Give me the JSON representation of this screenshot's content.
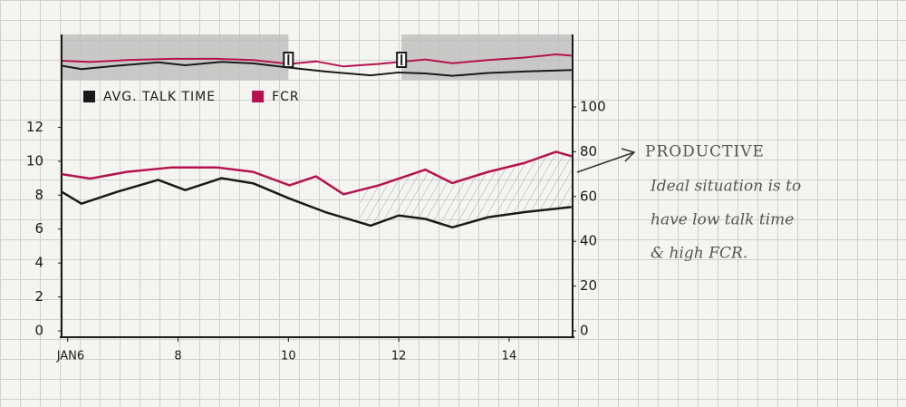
{
  "chart_data": {
    "type": "line",
    "series": [
      {
        "name": "AVG. TALK TIME",
        "color": "#1a1a1a",
        "x": [
          5.89,
          6.25,
          6.9,
          7.64,
          8.13,
          8.79,
          9.36,
          10.02,
          10.67,
          11.49,
          12.0,
          12.48,
          12.97,
          13.62,
          14.28,
          15.13
        ],
        "values": [
          8.2,
          7.5,
          8.2,
          8.9,
          8.3,
          9.0,
          8.7,
          7.8,
          7.0,
          6.2,
          6.8,
          6.6,
          6.1,
          6.7,
          7.0,
          7.3
        ]
      },
      {
        "name": "FCR",
        "color": "#b5124f",
        "axis": "y2",
        "x": [
          5.89,
          6.41,
          7.07,
          7.89,
          8.7,
          9.36,
          10.02,
          10.5,
          11.0,
          11.64,
          12.48,
          12.97,
          13.62,
          14.28,
          14.85,
          15.13
        ],
        "values": [
          70,
          68,
          71,
          73,
          73,
          71,
          65,
          69,
          61,
          65,
          72,
          66,
          71,
          75,
          80,
          78
        ]
      }
    ],
    "xlim": [
      5.89,
      15.15
    ],
    "xticks": [
      {
        "value": 6,
        "label": "JAN6"
      },
      8,
      10,
      12,
      14
    ],
    "ylim": [
      0,
      13.2
    ],
    "yticks": [
      0,
      2,
      4,
      6,
      8,
      10,
      12
    ],
    "y2lim": [
      0,
      100
    ],
    "y2ticks": [
      0,
      20,
      40,
      60,
      80,
      100
    ],
    "legend": "top-left",
    "navigator": {
      "range": [
        10.0,
        12.05
      ]
    },
    "highlight": {
      "xlim": [
        11.3,
        15.13
      ]
    },
    "annotation": {
      "title": "PRODUCTIVE",
      "lines": [
        "Ideal situation is to",
        "have low talk time",
        "& high FCR."
      ]
    }
  }
}
